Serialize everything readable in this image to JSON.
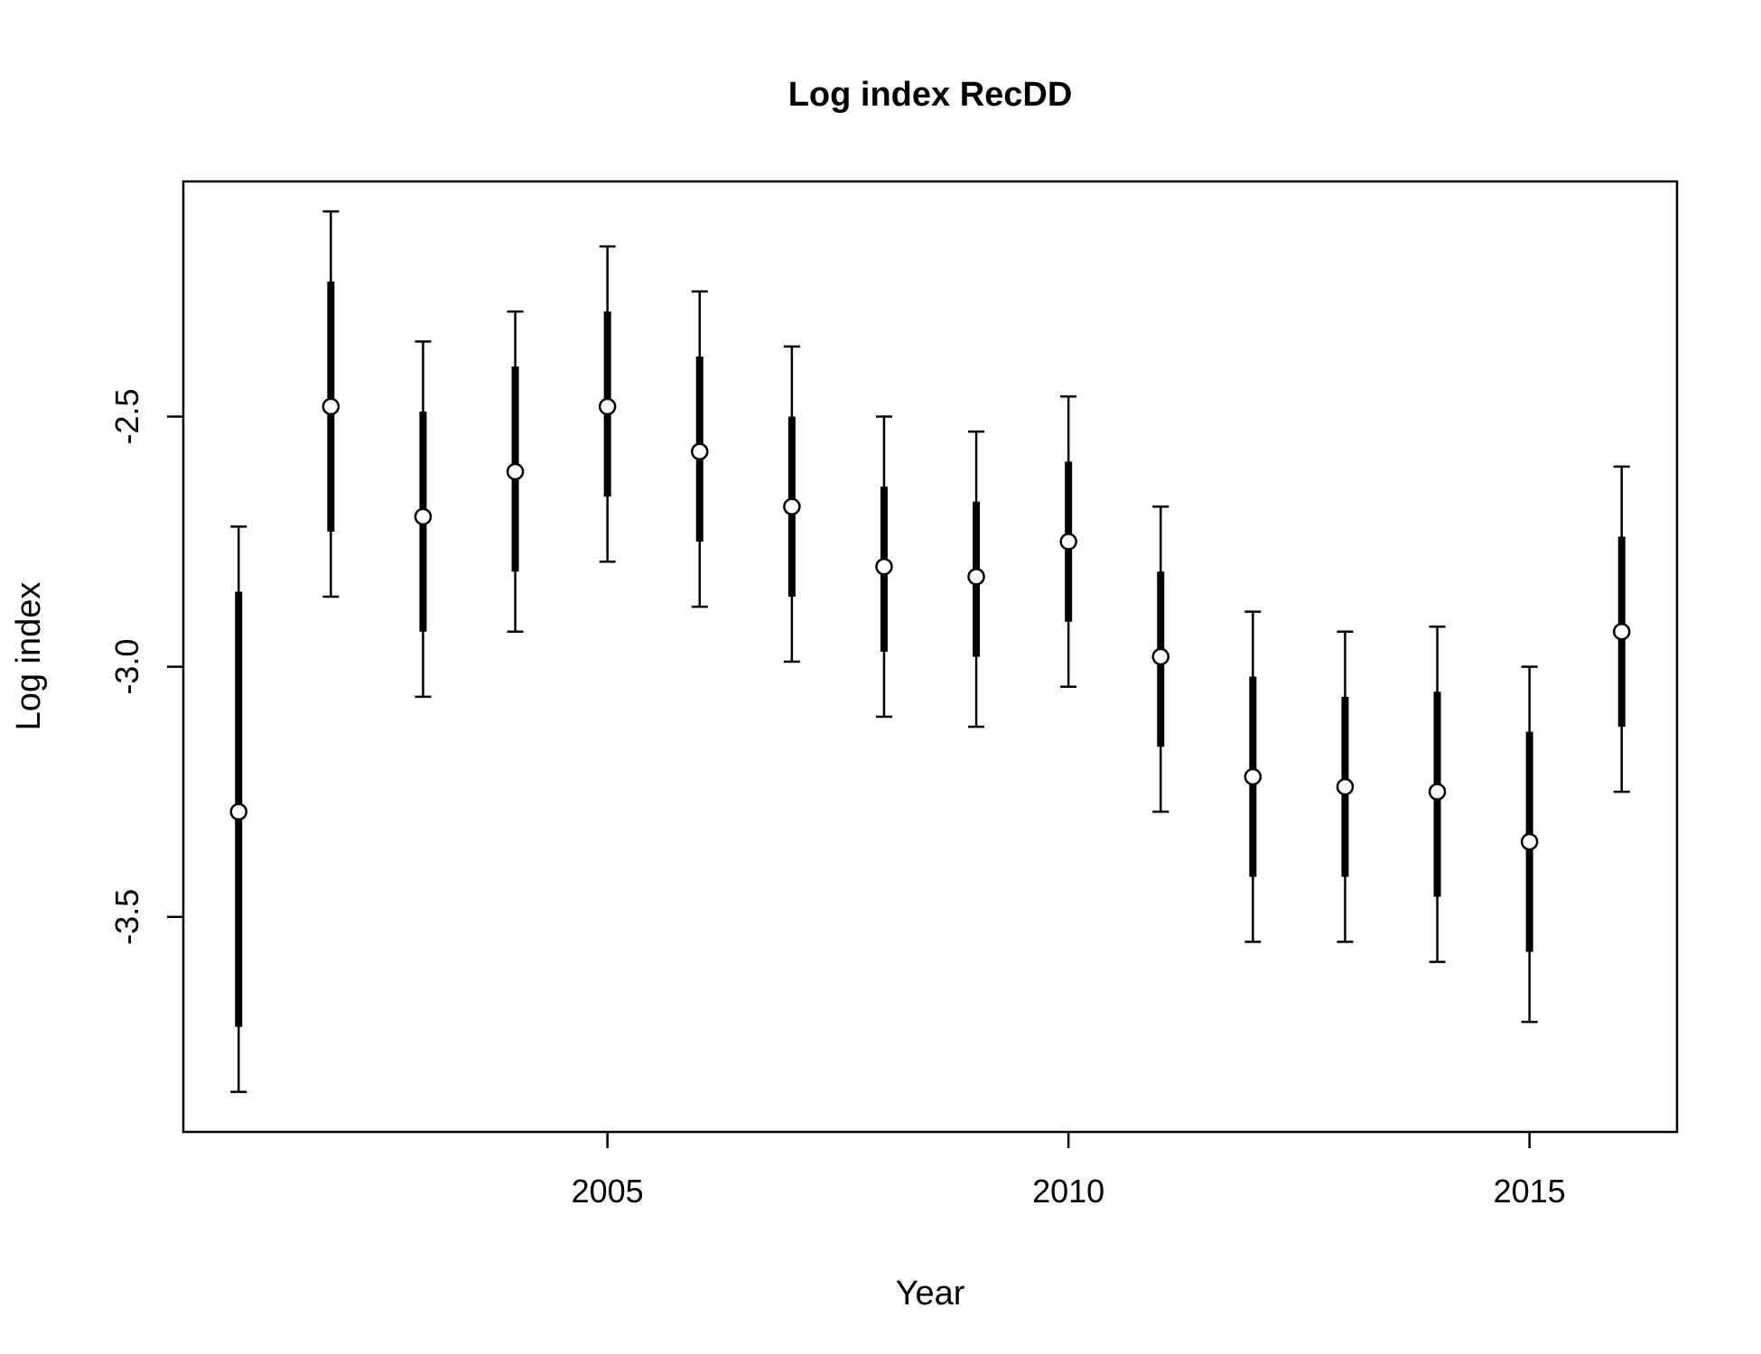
{
  "chart_data": {
    "type": "scatter",
    "title": "Log index RecDD",
    "xlabel": "Year",
    "ylabel": "Log index",
    "xlim": [
      2000.4,
      2016.6
    ],
    "ylim": [
      -3.93,
      -2.03
    ],
    "x_ticks": [
      2005,
      2010,
      2015
    ],
    "y_ticks": [
      -3.5,
      -3.0,
      -2.5
    ],
    "y_tick_labels": [
      "-3.5",
      "-3.0",
      "-2.5"
    ],
    "grid": false,
    "series": [
      {
        "x": [
          2001,
          2002,
          2003,
          2004,
          2005,
          2006,
          2007,
          2008,
          2009,
          2010,
          2011,
          2012,
          2013,
          2014,
          2015,
          2016
        ],
        "y": [
          -3.29,
          -2.48,
          -2.7,
          -2.61,
          -2.48,
          -2.57,
          -2.68,
          -2.8,
          -2.82,
          -2.75,
          -2.98,
          -3.22,
          -3.24,
          -3.25,
          -3.35,
          -2.93
        ],
        "inner_low": [
          -3.72,
          -2.73,
          -2.93,
          -2.81,
          -2.66,
          -2.75,
          -2.86,
          -2.97,
          -2.98,
          -2.91,
          -3.16,
          -3.42,
          -3.42,
          -3.46,
          -3.57,
          -3.12
        ],
        "inner_high": [
          -2.85,
          -2.23,
          -2.49,
          -2.4,
          -2.29,
          -2.38,
          -2.5,
          -2.64,
          -2.67,
          -2.59,
          -2.81,
          -3.02,
          -3.06,
          -3.05,
          -3.13,
          -2.74
        ],
        "outer_low": [
          -3.85,
          -2.86,
          -3.06,
          -2.93,
          -2.79,
          -2.88,
          -2.99,
          -3.1,
          -3.12,
          -3.04,
          -3.29,
          -3.55,
          -3.55,
          -3.59,
          -3.71,
          -3.25
        ],
        "outer_high": [
          -2.72,
          -2.09,
          -2.35,
          -2.29,
          -2.16,
          -2.25,
          -2.36,
          -2.5,
          -2.53,
          -2.46,
          -2.68,
          -2.89,
          -2.93,
          -2.92,
          -3.0,
          -2.6
        ]
      }
    ]
  }
}
